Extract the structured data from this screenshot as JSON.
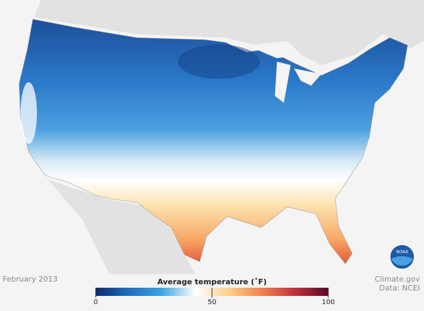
{
  "date": "February 2013",
  "credit": {
    "source": "Climate.gov",
    "data": "Data: NCEI"
  },
  "logo": "NOAA",
  "legend": {
    "title": "Average temperature (˚F)",
    "range": [
      0,
      100
    ],
    "ticks": [
      0,
      50,
      100
    ],
    "colors": [
      "#0d2b6b",
      "#1f6fc0",
      "#3fa5e0",
      "#ffffff",
      "#fdd08a",
      "#f08050",
      "#c0303a",
      "#5a0a2a"
    ]
  }
}
